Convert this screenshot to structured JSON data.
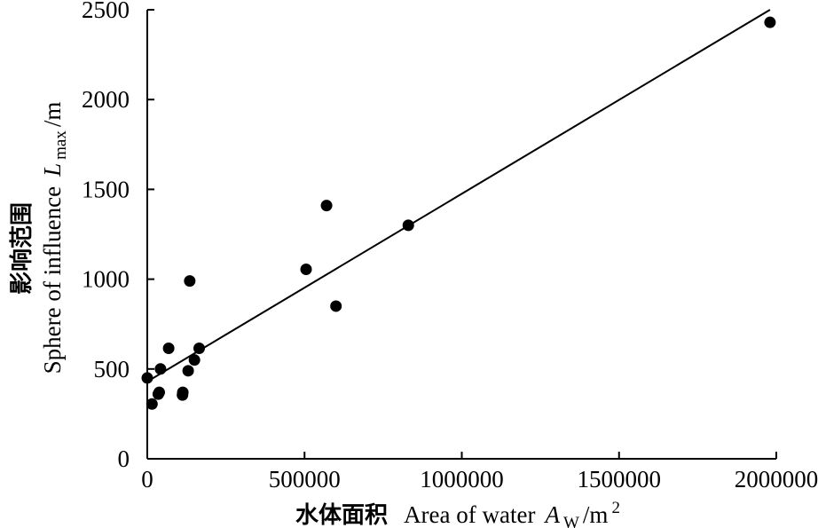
{
  "chart_data": {
    "type": "scatter",
    "xlabel_cn": "水体面积",
    "xlabel_en": "Area of water",
    "xlabel_symbol": "A",
    "xlabel_symbol_sub": "W",
    "xlabel_unit": "/m",
    "xlabel_unit_sup": "2",
    "ylabel_cn": "影响范围",
    "ylabel_en": "Sphere of influence",
    "ylabel_symbol": "L",
    "ylabel_symbol_sub": "max",
    "ylabel_unit": "/m",
    "xlim": [
      0,
      2000000
    ],
    "ylim": [
      0,
      2500
    ],
    "xticks": [
      0,
      500000,
      1000000,
      1500000,
      2000000
    ],
    "xtick_labels": [
      "0",
      "500000",
      "1000000",
      "1500000",
      "2000000"
    ],
    "yticks": [
      0,
      500,
      1000,
      1500,
      2000,
      2500
    ],
    "ytick_labels": [
      "0",
      "500",
      "1000",
      "1500",
      "2000",
      "2500"
    ],
    "grid": false,
    "points": [
      {
        "x": 0,
        "y": 450
      },
      {
        "x": 15000,
        "y": 305
      },
      {
        "x": 35000,
        "y": 360
      },
      {
        "x": 38000,
        "y": 370
      },
      {
        "x": 42000,
        "y": 500
      },
      {
        "x": 68000,
        "y": 615
      },
      {
        "x": 112000,
        "y": 355
      },
      {
        "x": 113000,
        "y": 370
      },
      {
        "x": 130000,
        "y": 490
      },
      {
        "x": 135000,
        "y": 990
      },
      {
        "x": 150000,
        "y": 550
      },
      {
        "x": 165000,
        "y": 615
      },
      {
        "x": 505000,
        "y": 1055
      },
      {
        "x": 570000,
        "y": 1410
      },
      {
        "x": 600000,
        "y": 850
      },
      {
        "x": 830000,
        "y": 1300
      },
      {
        "x": 1980000,
        "y": 2430
      }
    ],
    "trendline": {
      "x": [
        0,
        1980000
      ],
      "y": [
        430,
        2500
      ]
    }
  }
}
